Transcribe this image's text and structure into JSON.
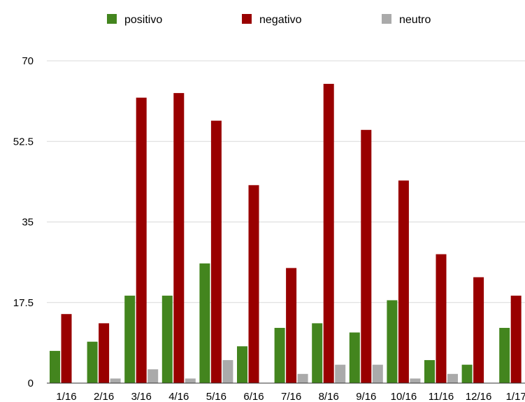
{
  "chart_data": {
    "type": "bar",
    "title": "",
    "xlabel": "",
    "ylabel": "",
    "ylim": [
      0,
      70
    ],
    "yticks": [
      "0",
      "17.5",
      "35",
      "52.5",
      "70"
    ],
    "grid": true,
    "legend_position": "top",
    "categories": [
      "1/16",
      "2/16",
      "3/16",
      "4/16",
      "5/16",
      "6/16",
      "7/16",
      "8/16",
      "9/16",
      "10/16",
      "11/16",
      "12/16",
      "1/17"
    ],
    "series": [
      {
        "name": "positivo",
        "color": "#43851e",
        "values": [
          7,
          9,
          19,
          19,
          26,
          8,
          12,
          13,
          11,
          18,
          5,
          4,
          12
        ]
      },
      {
        "name": "negativo",
        "color": "#990000",
        "values": [
          15,
          13,
          62,
          63,
          57,
          43,
          25,
          65,
          55,
          44,
          28,
          23,
          19
        ]
      },
      {
        "name": "neutro",
        "color": "#aaaaaa",
        "values": [
          0,
          1,
          3,
          1,
          5,
          0,
          2,
          4,
          4,
          1,
          2,
          0,
          0
        ]
      }
    ]
  }
}
